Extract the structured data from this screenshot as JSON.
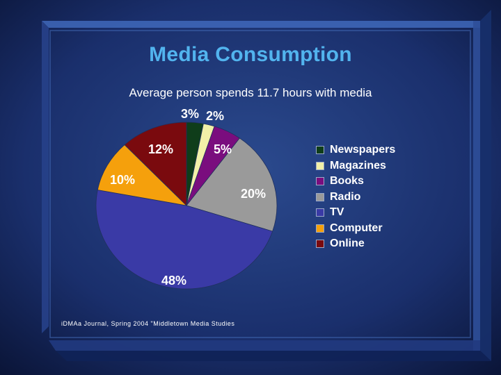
{
  "slide": {
    "title": "Media Consumption",
    "subtitle": "Average person spends 11.7 hours with media",
    "source": "iDMAa Journal, Spring 2004 \"Middletown Media Studies"
  },
  "chart_data": {
    "type": "pie",
    "title": "Media Consumption",
    "subtitle": "Average person spends 11.7 hours with media",
    "legend_position": "right",
    "slices": [
      {
        "label": "Newspapers",
        "value": 3,
        "value_label": "3%",
        "color": "#0f3d1a"
      },
      {
        "label": "Magazines",
        "value": 2,
        "value_label": "2%",
        "color": "#f2f0a8"
      },
      {
        "label": "Books",
        "value": 5,
        "value_label": "5%",
        "color": "#7a0d7e"
      },
      {
        "label": "Radio",
        "value": 20,
        "value_label": "20%",
        "color": "#9a9a9a"
      },
      {
        "label": "TV",
        "value": 48,
        "value_label": "48%",
        "color": "#3a3aa6"
      },
      {
        "label": "Computer",
        "value": 10,
        "value_label": "10%",
        "color": "#f5a00c"
      },
      {
        "label": "Online",
        "value": 12,
        "value_label": "12%",
        "color": "#7a0a0e"
      }
    ]
  }
}
